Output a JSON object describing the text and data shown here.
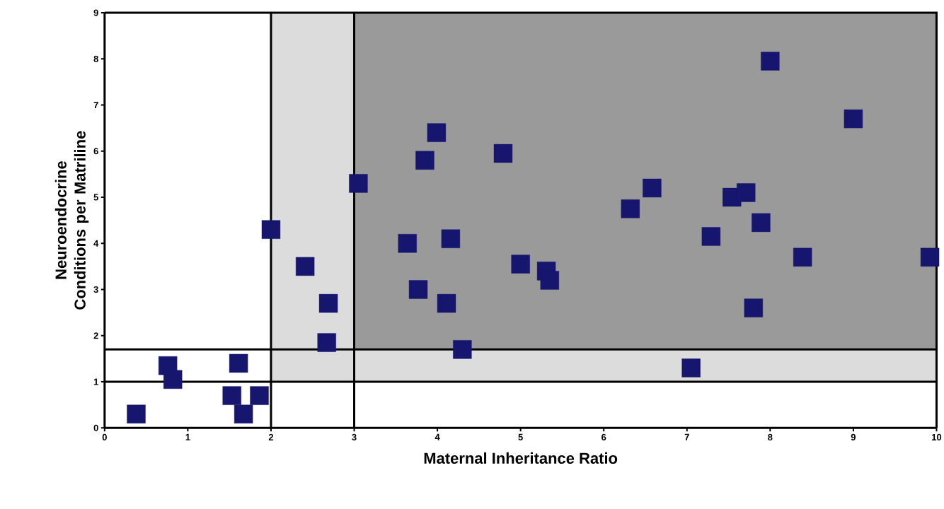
{
  "chart_data": {
    "type": "scatter",
    "xlabel": "Maternal Inheritance Ratio",
    "ylabel": "Neuroendocrine Conditions per Matriline",
    "x": [
      0.38,
      0.76,
      0.82,
      1.61,
      1.53,
      1.67,
      1.86,
      2.0,
      2.41,
      2.69,
      2.67,
      3.05,
      3.64,
      3.77,
      3.85,
      3.99,
      4.16,
      4.11,
      4.3,
      4.79,
      5.0,
      5.31,
      5.35,
      6.32,
      6.58,
      7.05,
      7.29,
      7.54,
      7.71,
      7.8,
      7.89,
      8.0,
      8.39,
      9.0,
      9.92
    ],
    "values": [
      0.3,
      1.35,
      1.05,
      1.4,
      0.7,
      0.3,
      0.7,
      4.3,
      3.5,
      2.7,
      1.85,
      5.3,
      4.0,
      3.0,
      5.8,
      6.4,
      4.1,
      2.7,
      1.7,
      5.95,
      3.55,
      3.4,
      3.2,
      4.75,
      5.2,
      1.3,
      4.15,
      5.0,
      5.1,
      2.6,
      4.45,
      7.95,
      3.7,
      6.7,
      3.7
    ],
    "color": "#16166e",
    "marker": "square",
    "xlim": [
      0,
      10
    ],
    "ylim": [
      0,
      9
    ],
    "xticks": [
      0,
      1,
      2,
      3,
      4,
      5,
      6,
      7,
      8,
      9,
      10
    ],
    "yticks": [
      0,
      1,
      2,
      3,
      4,
      5,
      6,
      7,
      8,
      9
    ],
    "grid": false,
    "ref_lines": [
      {
        "axis": "y",
        "value": 1
      },
      {
        "axis": "y",
        "value": 1.7
      },
      {
        "axis": "x",
        "value": 2
      },
      {
        "axis": "x",
        "value": 3
      }
    ],
    "bands": [
      {
        "axis": "x",
        "from": 2,
        "to": 10,
        "color": "#dcdcdc"
      },
      {
        "axis": "x",
        "from": 3,
        "to": 10,
        "color": "#9a9a9a"
      }
    ]
  }
}
